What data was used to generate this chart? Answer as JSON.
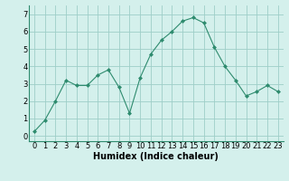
{
  "x": [
    0,
    1,
    2,
    3,
    4,
    5,
    6,
    7,
    8,
    9,
    10,
    11,
    12,
    13,
    14,
    15,
    16,
    17,
    18,
    19,
    20,
    21,
    22,
    23
  ],
  "y": [
    0.25,
    0.9,
    2.0,
    3.2,
    2.9,
    2.9,
    3.5,
    3.8,
    2.8,
    1.3,
    3.35,
    4.7,
    5.5,
    6.0,
    6.6,
    6.8,
    6.5,
    5.1,
    4.0,
    3.2,
    2.3,
    2.55,
    2.9,
    2.55
  ],
  "line_color": "#2e8b6e",
  "marker_color": "#2e8b6e",
  "bg_color": "#d4f0ec",
  "grid_color": "#9ecec8",
  "xlabel": "Humidex (Indice chaleur)",
  "xlabel_fontsize": 7,
  "tick_fontsize": 6,
  "ylim": [
    -0.3,
    7.5
  ],
  "xlim": [
    -0.5,
    23.5
  ],
  "yticks": [
    0,
    1,
    2,
    3,
    4,
    5,
    6,
    7
  ],
  "xticks": [
    0,
    1,
    2,
    3,
    4,
    5,
    6,
    7,
    8,
    9,
    10,
    11,
    12,
    13,
    14,
    15,
    16,
    17,
    18,
    19,
    20,
    21,
    22,
    23
  ]
}
